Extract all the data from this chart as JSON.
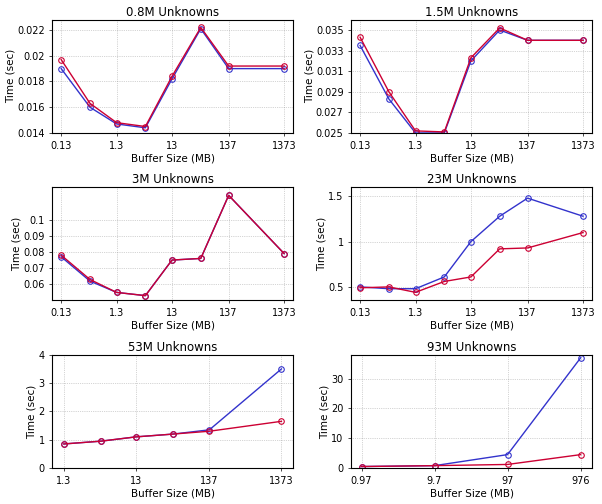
{
  "subplots": [
    {
      "title": "0.8M Unknowns",
      "xlabel": "Buffer Size (MB)",
      "ylabel": "Time (sec)",
      "xticklabels": [
        "0.13",
        "1.3",
        "13",
        "137",
        "1373"
      ],
      "xtickvals": [
        0.13,
        1.3,
        13,
        137,
        1373
      ],
      "xlim_vals": [
        0.09,
        2000
      ],
      "ylim": [
        0.014,
        0.0228
      ],
      "yticks": [
        0.014,
        0.016,
        0.018,
        0.02,
        0.022
      ],
      "yticklabels": [
        "0.014",
        "0.016",
        "0.018",
        "0.02",
        "0.022"
      ],
      "line1": {
        "x": [
          0.13,
          0.43,
          1.3,
          4.3,
          13,
          43,
          137,
          1373
        ],
        "y": [
          0.0197,
          0.0163,
          0.0148,
          0.0145,
          0.0184,
          0.0222,
          0.0192,
          0.0192
        ],
        "color": "#cc0033"
      },
      "line2": {
        "x": [
          0.13,
          0.43,
          1.3,
          4.3,
          13,
          43,
          137,
          1373
        ],
        "y": [
          0.019,
          0.016,
          0.0147,
          0.0144,
          0.0182,
          0.0221,
          0.019,
          0.019
        ],
        "color": "#3333cc"
      }
    },
    {
      "title": "1.5M Unknowns",
      "xlabel": "Buffer Size (MB)",
      "ylabel": "Time (sec)",
      "xticklabels": [
        "0.13",
        "1.3",
        "13",
        "137",
        "1373"
      ],
      "xtickvals": [
        0.13,
        1.3,
        13,
        137,
        1373
      ],
      "xlim_vals": [
        0.09,
        2000
      ],
      "ylim": [
        0.025,
        0.036
      ],
      "yticks": [
        0.025,
        0.027,
        0.029,
        0.031,
        0.033,
        0.035
      ],
      "yticklabels": [
        "0.025",
        "0.027",
        "0.029",
        "0.031",
        "0.033",
        "0.035"
      ],
      "line1": {
        "x": [
          0.13,
          0.43,
          1.3,
          4.3,
          13,
          43,
          137,
          1373
        ],
        "y": [
          0.0343,
          0.029,
          0.0252,
          0.0251,
          0.0323,
          0.0352,
          0.034,
          0.034
        ],
        "color": "#cc0033"
      },
      "line2": {
        "x": [
          0.13,
          0.43,
          1.3,
          4.3,
          13,
          43,
          137,
          1373
        ],
        "y": [
          0.0335,
          0.0283,
          0.025,
          0.025,
          0.032,
          0.035,
          0.034,
          0.034
        ],
        "color": "#3333cc"
      }
    },
    {
      "title": "3M Unknowns",
      "xlabel": "Buffer Size (MB)",
      "ylabel": "Time (sec)",
      "xticklabels": [
        "0.13",
        "1.3",
        "13",
        "137",
        "1373"
      ],
      "xtickvals": [
        0.13,
        1.3,
        13,
        137,
        1373
      ],
      "xlim_vals": [
        0.09,
        2000
      ],
      "ylim": [
        0.05,
        0.12
      ],
      "yticks": [
        0.06,
        0.07,
        0.08,
        0.09,
        0.1
      ],
      "yticklabels": [
        "0.06",
        "0.07",
        "0.08",
        "0.09",
        "0.1"
      ],
      "line1": {
        "x": [
          0.13,
          0.43,
          1.3,
          4.3,
          13,
          43,
          137,
          1373
        ],
        "y": [
          0.078,
          0.063,
          0.055,
          0.053,
          0.075,
          0.076,
          0.115,
          0.079
        ],
        "color": "#cc0033"
      },
      "line2": {
        "x": [
          0.13,
          0.43,
          1.3,
          4.3,
          13,
          43,
          137,
          1373
        ],
        "y": [
          0.077,
          0.062,
          0.055,
          0.053,
          0.075,
          0.076,
          0.115,
          0.079
        ],
        "color": "#3333cc"
      }
    },
    {
      "title": "23M Unknowns",
      "xlabel": "Buffer Size (MB)",
      "ylabel": "Time (sec)",
      "xticklabels": [
        "0.13",
        "1.3",
        "13",
        "137",
        "1373"
      ],
      "xtickvals": [
        0.13,
        1.3,
        13,
        137,
        1373
      ],
      "xlim_vals": [
        0.09,
        2000
      ],
      "ylim": [
        0.35,
        1.6
      ],
      "yticks": [
        0.5,
        1.0,
        1.5
      ],
      "yticklabels": [
        "0.5",
        "1",
        "1.5"
      ],
      "line1": {
        "x": [
          0.13,
          0.43,
          1.3,
          4.3,
          13,
          43,
          137,
          1373
        ],
        "y": [
          0.49,
          0.5,
          0.44,
          0.56,
          0.61,
          0.92,
          0.93,
          1.1
        ],
        "color": "#cc0033"
      },
      "line2": {
        "x": [
          0.13,
          0.43,
          1.3,
          4.3,
          13,
          43,
          137,
          1373
        ],
        "y": [
          0.5,
          0.48,
          0.48,
          0.61,
          1.0,
          1.28,
          1.48,
          1.28
        ],
        "color": "#3333cc"
      }
    },
    {
      "title": "53M Unknowns",
      "xlabel": "Buffer Size (MB)",
      "ylabel": "Time (sec)",
      "xticklabels": [
        "1.3",
        "13",
        "137",
        "1373"
      ],
      "xtickvals": [
        1.3,
        13,
        137,
        1373
      ],
      "xlim_vals": [
        0.9,
        2000
      ],
      "ylim": [
        0.0,
        4.0
      ],
      "yticks": [
        0,
        1,
        2,
        3,
        4
      ],
      "yticklabels": [
        "0",
        "1",
        "2",
        "3",
        "4"
      ],
      "line1": {
        "x": [
          1.3,
          4.3,
          13,
          43,
          137,
          1373
        ],
        "y": [
          0.85,
          0.95,
          1.1,
          1.2,
          1.3,
          1.65
        ],
        "color": "#cc0033"
      },
      "line2": {
        "x": [
          1.3,
          4.3,
          13,
          43,
          137,
          1373
        ],
        "y": [
          0.85,
          0.95,
          1.1,
          1.2,
          1.35,
          3.5
        ],
        "color": "#3333cc"
      }
    },
    {
      "title": "93M Unknowns",
      "xlabel": "Buffer Size (MB)",
      "ylabel": "Time (sec)",
      "xticklabels": [
        "0.97",
        "9.7",
        "97",
        "976"
      ],
      "xtickvals": [
        0.97,
        9.7,
        97,
        976
      ],
      "xlim_vals": [
        0.7,
        1400
      ],
      "ylim": [
        0.0,
        38
      ],
      "yticks": [
        0,
        10,
        20,
        30
      ],
      "yticklabels": [
        "0",
        "10",
        "20",
        "30"
      ],
      "line1": {
        "x": [
          0.97,
          9.7,
          97,
          976
        ],
        "y": [
          0.5,
          0.8,
          1.2,
          4.5
        ],
        "color": "#cc0033"
      },
      "line2": {
        "x": [
          0.97,
          9.7,
          97,
          976
        ],
        "y": [
          0.5,
          0.8,
          4.5,
          37.0
        ],
        "color": "#3333cc"
      }
    }
  ],
  "background_color": "#ffffff",
  "grid_color": "#888888",
  "marker": "o",
  "markersize": 4,
  "linewidth": 1.0
}
